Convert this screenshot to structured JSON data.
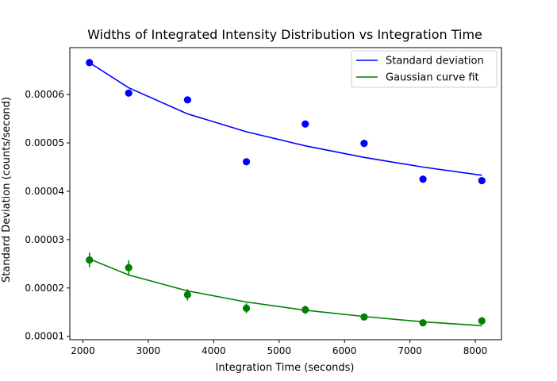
{
  "chart_data": {
    "type": "line",
    "title": "Widths of Integrated Intensity Distribution vs Integration Time",
    "xlabel": "Integration Time (seconds)",
    "ylabel": "Standard Deviation (counts/second)",
    "xlim": [
      1800,
      8400
    ],
    "ylim": [
      9.3e-06,
      6.97e-05
    ],
    "xticks": [
      2000,
      3000,
      4000,
      5000,
      6000,
      7000,
      8000
    ],
    "xtick_labels": [
      "2000",
      "3000",
      "4000",
      "5000",
      "6000",
      "7000",
      "8000"
    ],
    "yticks": [
      1e-05,
      2e-05,
      3e-05,
      4e-05,
      5e-05,
      6e-05
    ],
    "ytick_labels": [
      "0.00001",
      "0.00002",
      "0.00003",
      "0.00004",
      "0.00005",
      "0.00006"
    ],
    "grid": false,
    "legend_position": "top-right",
    "x": [
      2100,
      2700,
      3600,
      4500,
      5400,
      6300,
      7200,
      8100
    ],
    "series": [
      {
        "name": "Standard deviation",
        "color": "#0000ff",
        "points": [
          6.66e-05,
          6.03e-05,
          5.89e-05,
          4.61e-05,
          5.39e-05,
          4.99e-05,
          4.25e-05,
          4.22e-05
        ],
        "errors": [
          0,
          0,
          0,
          0,
          0,
          0,
          0,
          0
        ],
        "line": [
          6.66e-05,
          6.14e-05,
          5.6e-05,
          5.23e-05,
          4.94e-05,
          4.7e-05,
          4.5e-05,
          4.33e-05
        ]
      },
      {
        "name": "Gaussian curve fit",
        "color": "#008000",
        "points": [
          2.58e-05,
          2.42e-05,
          1.86e-05,
          1.58e-05,
          1.55e-05,
          1.4e-05,
          1.28e-05,
          1.32e-05
        ],
        "errors": [
          1.5e-06,
          1.5e-06,
          1.2e-06,
          1e-06,
          9e-07,
          6e-07,
          6e-07,
          8e-07
        ],
        "line": [
          2.6e-05,
          2.27e-05,
          1.94e-05,
          1.71e-05,
          1.54e-05,
          1.41e-05,
          1.3e-05,
          1.22e-05
        ]
      }
    ]
  }
}
